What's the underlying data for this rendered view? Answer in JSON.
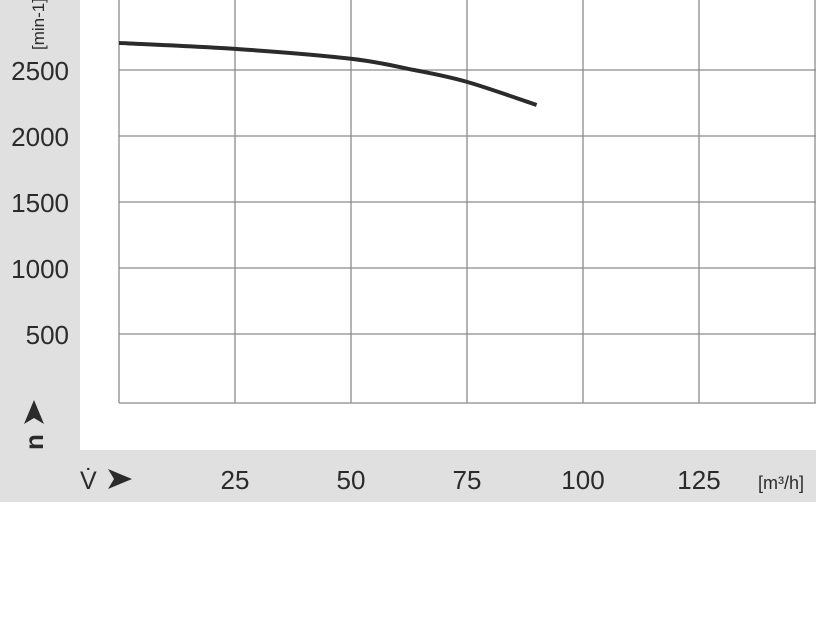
{
  "chart_data": {
    "type": "line",
    "title": "",
    "xlabel": "V̇",
    "xunit": "[m³/h]",
    "ylabel": "n",
    "yunit": "[min-1]",
    "xlim": [
      0,
      150
    ],
    "ylim": [
      0,
      3000
    ],
    "grid": true,
    "x_ticks": [
      25,
      50,
      75,
      100,
      125
    ],
    "x_tick_labels": [
      "25",
      "50",
      "75",
      "100",
      "125"
    ],
    "y_ticks": [
      500,
      1000,
      1500,
      2000,
      2500
    ],
    "y_tick_labels": [
      "500",
      "1000",
      "1500",
      "2000",
      "2500"
    ],
    "series": [
      {
        "x": [
          0,
          25,
          50,
          63.6,
          75,
          90
        ],
        "y": [
          2705,
          2660,
          2585,
          2500,
          2410,
          2235
        ]
      }
    ],
    "colors": {
      "band": "#e0e0e0",
      "grid": "#8c8c8c",
      "line": "#2b2b2b",
      "text": "#2b2b2b"
    }
  }
}
